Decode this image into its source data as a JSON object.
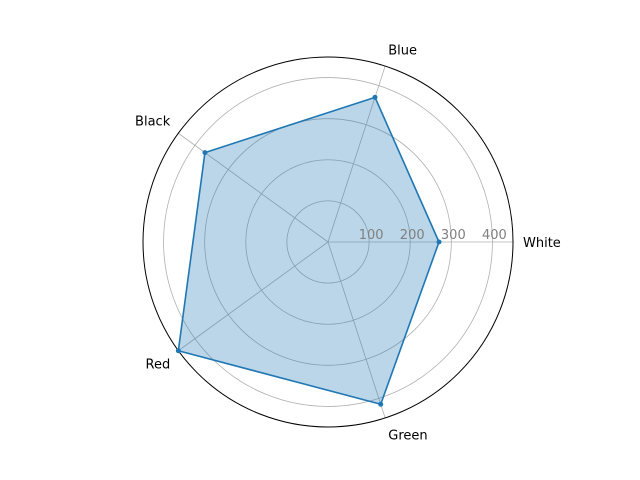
{
  "chart_data": {
    "type": "radar",
    "categories": [
      "White",
      "Blue",
      "Black",
      "Red",
      "Green"
    ],
    "values": [
      270,
      370,
      370,
      450,
      415
    ],
    "r_ticks": [
      100,
      200,
      300,
      400
    ],
    "r_max": 450,
    "grid": true,
    "colors": {
      "line": "#1f77b4",
      "fill": "#1f77b4",
      "grid": "#b0b0b0",
      "tick_text": "#7f7f7f",
      "outer": "#000000"
    }
  }
}
